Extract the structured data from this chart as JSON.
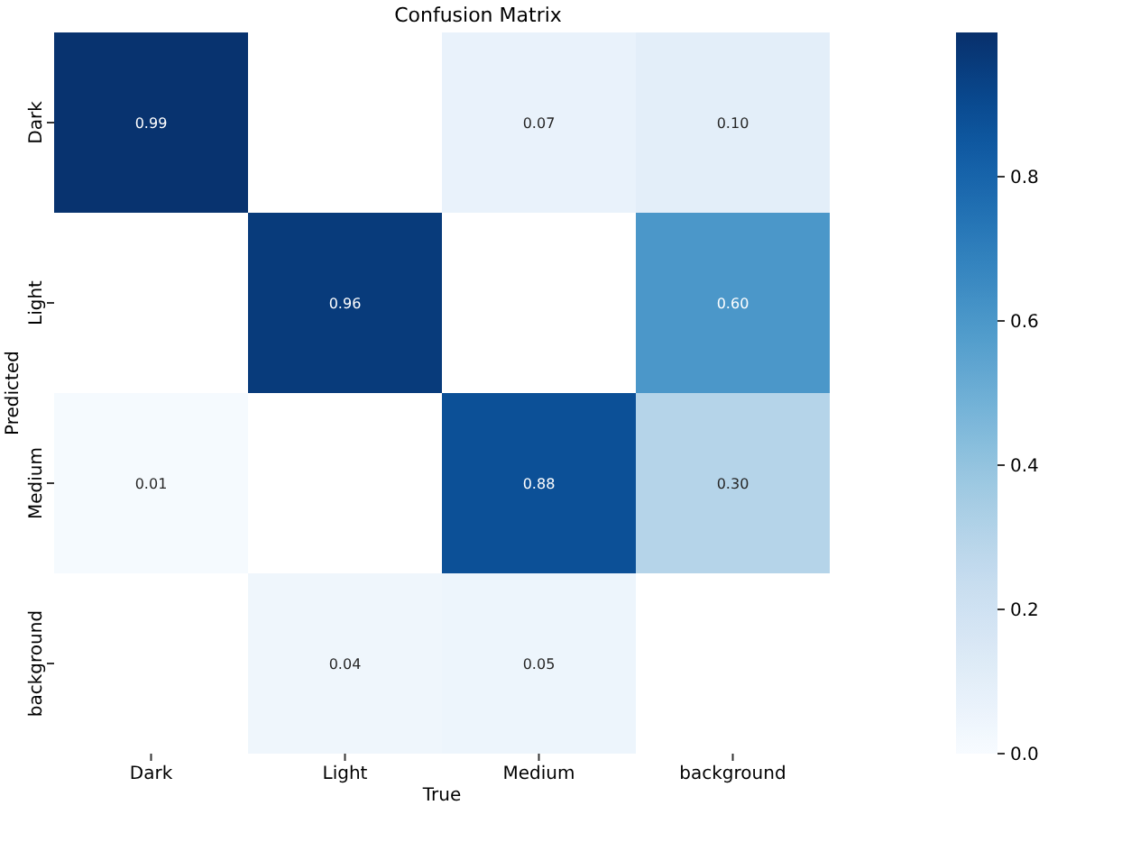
{
  "chart_data": {
    "type": "heatmap",
    "title": "Confusion Matrix",
    "xlabel": "True",
    "ylabel": "Predicted",
    "categories": [
      "Dark",
      "Light",
      "Medium",
      "background"
    ],
    "y_categories": [
      "Dark",
      "Light",
      "Medium",
      "background"
    ],
    "cells": [
      [
        0.99,
        null,
        0.07,
        0.1
      ],
      [
        null,
        0.96,
        null,
        0.6
      ],
      [
        0.01,
        null,
        0.88,
        0.3
      ],
      [
        null,
        0.04,
        0.05,
        null
      ]
    ],
    "cell_labels": [
      [
        "0.99",
        null,
        "0.07",
        "0.10"
      ],
      [
        null,
        "0.96",
        null,
        "0.60"
      ],
      [
        "0.01",
        null,
        "0.88",
        "0.30"
      ],
      [
        null,
        "0.04",
        "0.05",
        null
      ]
    ],
    "clim": [
      0,
      1
    ],
    "cticks": [
      {
        "value": 0,
        "label": "0.0"
      },
      {
        "value": 0.2,
        "label": "0.2"
      },
      {
        "value": 0.4,
        "label": "0.4"
      },
      {
        "value": 0.6,
        "label": "0.6"
      },
      {
        "value": 0.8,
        "label": "0.8"
      }
    ]
  }
}
